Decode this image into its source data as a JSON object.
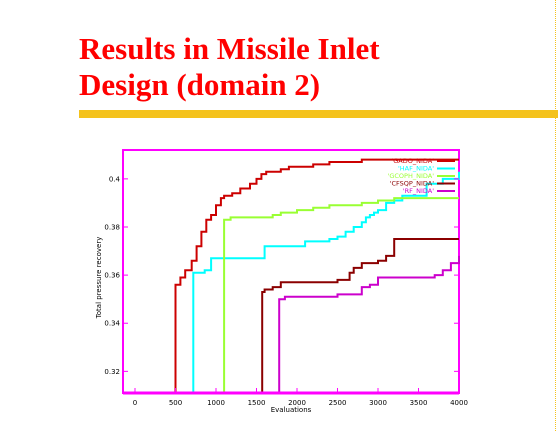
{
  "slide": {
    "title_line1": "Results in Missile Inlet",
    "title_line2": "Design (domain 2)"
  },
  "colors": {
    "title": "#ff0000",
    "rule": "#f4c21c",
    "frame": "#ff00ff"
  },
  "chart_data": {
    "type": "line",
    "title": "",
    "xlabel": "Evaluations",
    "ylabel": "Total pressure recovery",
    "xlim": [
      0,
      4000
    ],
    "ylim": [
      0.311,
      0.412
    ],
    "xticks": [
      0,
      500,
      1000,
      1500,
      2000,
      2500,
      3000,
      3500,
      4000
    ],
    "yticks": [
      0.32,
      0.34,
      0.36,
      0.38,
      0.4
    ],
    "xtick_labels": [
      "0",
      "500",
      "1000",
      "1500",
      "2000",
      "2500",
      "3000",
      "3500",
      "4000"
    ],
    "ytick_labels": [
      "0.32",
      "0.34",
      "0.36",
      "0.38",
      "0.4"
    ],
    "grid": false,
    "legend_position": "top-right",
    "series": [
      {
        "name": "'GADO_NIDA'",
        "color": "#cc0000",
        "x": [
          500,
          500,
          560,
          620,
          700,
          760,
          820,
          880,
          940,
          1000,
          1060,
          1100,
          1200,
          1300,
          1420,
          1500,
          1560,
          1620,
          1700,
          1800,
          1900,
          2000,
          2200,
          2400,
          2600,
          2800,
          3000,
          3400,
          4000
        ],
        "y": [
          0.311,
          0.356,
          0.359,
          0.362,
          0.366,
          0.372,
          0.378,
          0.383,
          0.385,
          0.389,
          0.392,
          0.393,
          0.394,
          0.396,
          0.398,
          0.4,
          0.402,
          0.403,
          0.403,
          0.404,
          0.405,
          0.405,
          0.406,
          0.407,
          0.407,
          0.408,
          0.408,
          0.408,
          0.408
        ]
      },
      {
        "name": "'HAF_NIDA'",
        "color": "#00ffff",
        "x": [
          720,
          720,
          800,
          860,
          940,
          1000,
          1500,
          1600,
          1700,
          2000,
          2100,
          2400,
          2500,
          2600,
          2700,
          2800,
          2850,
          2900,
          2950,
          3000,
          3100,
          3200,
          3300,
          3600,
          3800,
          4000
        ],
        "y": [
          0.311,
          0.361,
          0.361,
          0.362,
          0.367,
          0.367,
          0.367,
          0.372,
          0.372,
          0.372,
          0.374,
          0.375,
          0.376,
          0.378,
          0.38,
          0.382,
          0.384,
          0.385,
          0.386,
          0.387,
          0.39,
          0.391,
          0.393,
          0.398,
          0.4,
          0.403
        ]
      },
      {
        "name": "'GCOPH_NIDA'",
        "color": "#99ff33",
        "x": [
          1100,
          1100,
          1180,
          1250,
          1300,
          1600,
          1700,
          1800,
          2000,
          2200,
          2400,
          2600,
          2800,
          3000,
          3200,
          3500,
          3700,
          4000
        ],
        "y": [
          0.311,
          0.383,
          0.384,
          0.384,
          0.384,
          0.384,
          0.385,
          0.386,
          0.387,
          0.388,
          0.389,
          0.389,
          0.39,
          0.391,
          0.392,
          0.392,
          0.392,
          0.392
        ]
      },
      {
        "name": "'CFSQP_NIDA'",
        "color": "#8b0000",
        "x": [
          1570,
          1570,
          1600,
          1700,
          1800,
          1900,
          2000,
          2500,
          2650,
          2700,
          2800,
          3000,
          3100,
          3200,
          3500,
          4000
        ],
        "y": [
          0.311,
          0.353,
          0.354,
          0.355,
          0.357,
          0.357,
          0.357,
          0.358,
          0.361,
          0.363,
          0.365,
          0.366,
          0.368,
          0.375,
          0.375,
          0.375
        ]
      },
      {
        "name": "'RF_NIDA'",
        "color": "#cc00cc",
        "x": [
          1780,
          1780,
          1850,
          2000,
          2200,
          2500,
          2700,
          2800,
          2900,
          3000,
          3200,
          3500,
          3700,
          3800,
          3900,
          4000
        ],
        "y": [
          0.311,
          0.35,
          0.351,
          0.351,
          0.351,
          0.352,
          0.352,
          0.355,
          0.356,
          0.359,
          0.359,
          0.359,
          0.36,
          0.362,
          0.365,
          0.368
        ]
      }
    ]
  }
}
